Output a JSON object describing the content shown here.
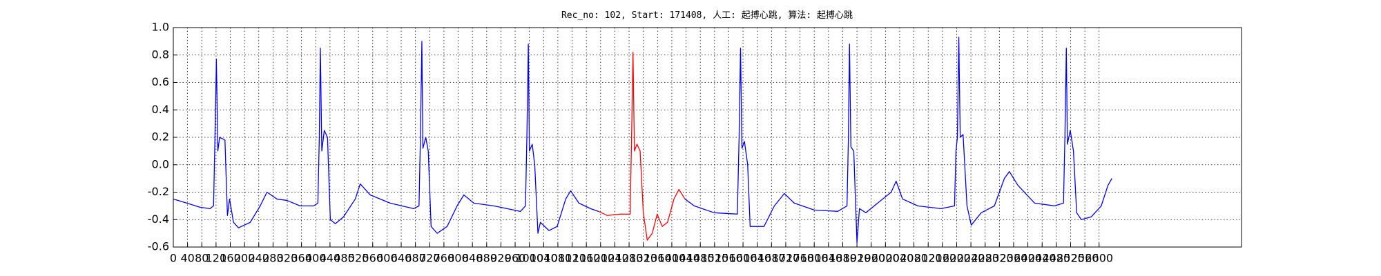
{
  "chart_data": {
    "type": "line",
    "title": "Rec_no: 102, Start: 171408, 人工: 起搏心跳, 算法: 起搏心跳",
    "x": [
      0,
      38,
      75,
      103,
      113,
      117,
      121,
      125,
      130,
      145,
      152,
      158,
      169,
      183,
      216,
      244,
      263,
      291,
      319,
      356,
      394,
      406,
      410,
      413,
      417,
      424,
      433,
      441,
      455,
      478,
      511,
      525,
      553,
      609,
      675,
      690,
      694,
      698,
      701,
      709,
      716,
      724,
      741,
      769,
      797,
      816,
      844,
      900,
      975,
      989,
      993,
      997,
      1000,
      1008,
      1015,
      1024,
      1031,
      1055,
      1078,
      1102,
      1116,
      1139,
      1172,
      1194,
      1219,
      1256,
      1283,
      1287,
      1291,
      1295,
      1302,
      1311,
      1320,
      1331,
      1345,
      1359,
      1373,
      1388,
      1406,
      1420,
      1437,
      1463,
      1519,
      1584,
      1589,
      1593,
      1597,
      1604,
      1613,
      1620,
      1636,
      1659,
      1688,
      1716,
      1744,
      1800,
      1866,
      1892,
      1896,
      1899,
      1903,
      1911,
      1920,
      1927,
      1945,
      1978,
      2016,
      2030,
      2048,
      2091,
      2156,
      2194,
      2198,
      2202,
      2206,
      2210,
      2218,
      2229,
      2241,
      2269,
      2306,
      2334,
      2348,
      2372,
      2419,
      2475,
      2500,
      2504,
      2508,
      2511,
      2519,
      2528,
      2537,
      2550,
      2578,
      2606,
      2625,
      2636
    ],
    "series": [
      {
        "color": "#0000ff",
        "values": [
          -0.25,
          -0.28,
          -0.31,
          -0.32,
          -0.3,
          0.2,
          0.77,
          0.1,
          0.2,
          0.18,
          -0.37,
          -0.25,
          -0.42,
          -0.46,
          -0.42,
          -0.3,
          -0.2,
          -0.25,
          -0.26,
          -0.3,
          -0.3,
          -0.28,
          0.2,
          0.85,
          0.1,
          0.25,
          0.2,
          -0.4,
          -0.43,
          -0.38,
          -0.25,
          -0.14,
          -0.22,
          -0.28,
          -0.32,
          -0.3,
          0.2,
          0.9,
          0.12,
          0.2,
          0.1,
          -0.45,
          -0.5,
          -0.45,
          -0.3,
          -0.22,
          -0.28,
          -0.3,
          -0.34,
          -0.3,
          0.2,
          0.88,
          0.1,
          0.15,
          0.0,
          -0.5,
          -0.42,
          -0.48,
          -0.45,
          -0.25,
          -0.19,
          -0.28,
          -0.32,
          -0.34,
          null,
          null,
          null,
          null,
          null,
          null,
          null,
          null,
          null,
          null,
          null,
          null,
          null,
          null,
          null,
          null,
          -0.25,
          -0.3,
          -0.35,
          -0.36,
          0.2,
          0.85,
          0.12,
          0.17,
          0.0,
          -0.45,
          -0.45,
          -0.45,
          -0.3,
          -0.21,
          -0.28,
          -0.33,
          -0.34,
          -0.3,
          0.2,
          0.88,
          0.13,
          0.1,
          -0.57,
          -0.32,
          -0.35,
          -0.28,
          -0.2,
          -0.12,
          -0.25,
          -0.3,
          -0.32,
          -0.3,
          0.1,
          0.2,
          0.93,
          0.2,
          0.22,
          -0.3,
          -0.44,
          -0.35,
          -0.3,
          -0.1,
          -0.05,
          -0.15,
          -0.28,
          -0.3,
          -0.28,
          0.2,
          0.85,
          0.15,
          0.25,
          0.1,
          -0.35,
          -0.4,
          -0.38,
          -0.3,
          -0.15,
          -0.1
        ]
      },
      {
        "color": "#ff0000",
        "values": [
          null,
          null,
          null,
          null,
          null,
          null,
          null,
          null,
          null,
          null,
          null,
          null,
          null,
          null,
          null,
          null,
          null,
          null,
          null,
          null,
          null,
          null,
          null,
          null,
          null,
          null,
          null,
          null,
          null,
          null,
          null,
          null,
          null,
          null,
          null,
          null,
          null,
          null,
          null,
          null,
          null,
          null,
          null,
          null,
          null,
          null,
          null,
          null,
          null,
          null,
          null,
          null,
          null,
          null,
          null,
          null,
          null,
          null,
          null,
          null,
          null,
          null,
          null,
          -0.34,
          -0.37,
          -0.36,
          -0.36,
          0.2,
          0.82,
          0.1,
          0.15,
          0.1,
          -0.35,
          -0.55,
          -0.5,
          -0.36,
          -0.45,
          -0.42,
          -0.25,
          -0.18,
          -0.25,
          null,
          null,
          null,
          null,
          null,
          null,
          null,
          null,
          null,
          null,
          null,
          null,
          null,
          null,
          null,
          null,
          null,
          null,
          null,
          null,
          null,
          null,
          null,
          null,
          null,
          null,
          null,
          null,
          null,
          null,
          null,
          null,
          null,
          null,
          null,
          null,
          null,
          null,
          null,
          null,
          null,
          null,
          null,
          null,
          null,
          null,
          null,
          null,
          null,
          null,
          null,
          null,
          null,
          null,
          null,
          null,
          null
        ]
      }
    ],
    "xlim": [
      0,
      3000
    ],
    "xticks": [
      0,
      40,
      80,
      120,
      160,
      200,
      240,
      280,
      320,
      360,
      400,
      440,
      480,
      520,
      560,
      600,
      640,
      680,
      720,
      760,
      800,
      840,
      880,
      920,
      960,
      1000,
      1040,
      1080,
      1120,
      1160,
      1200,
      1240,
      1280,
      1320,
      1360,
      1400,
      1440,
      1480,
      1520,
      1560,
      1600,
      1640,
      1680,
      1720,
      1760,
      1800,
      1840,
      1880,
      1920,
      1960,
      2000,
      2040,
      2080,
      2120,
      2160,
      2200,
      2240,
      2280,
      2320,
      2360,
      2400,
      2440,
      2480,
      2520,
      2560,
      2600
    ],
    "ylim": [
      -0.6,
      1.0
    ],
    "yticks": [
      -0.6,
      -0.4,
      -0.2,
      {
        "value": 0,
        "label": "0.0"
      },
      0.2,
      0.4,
      0.6,
      0.8,
      {
        "value": 1,
        "label": "1.0"
      }
    ],
    "grid": true
  }
}
